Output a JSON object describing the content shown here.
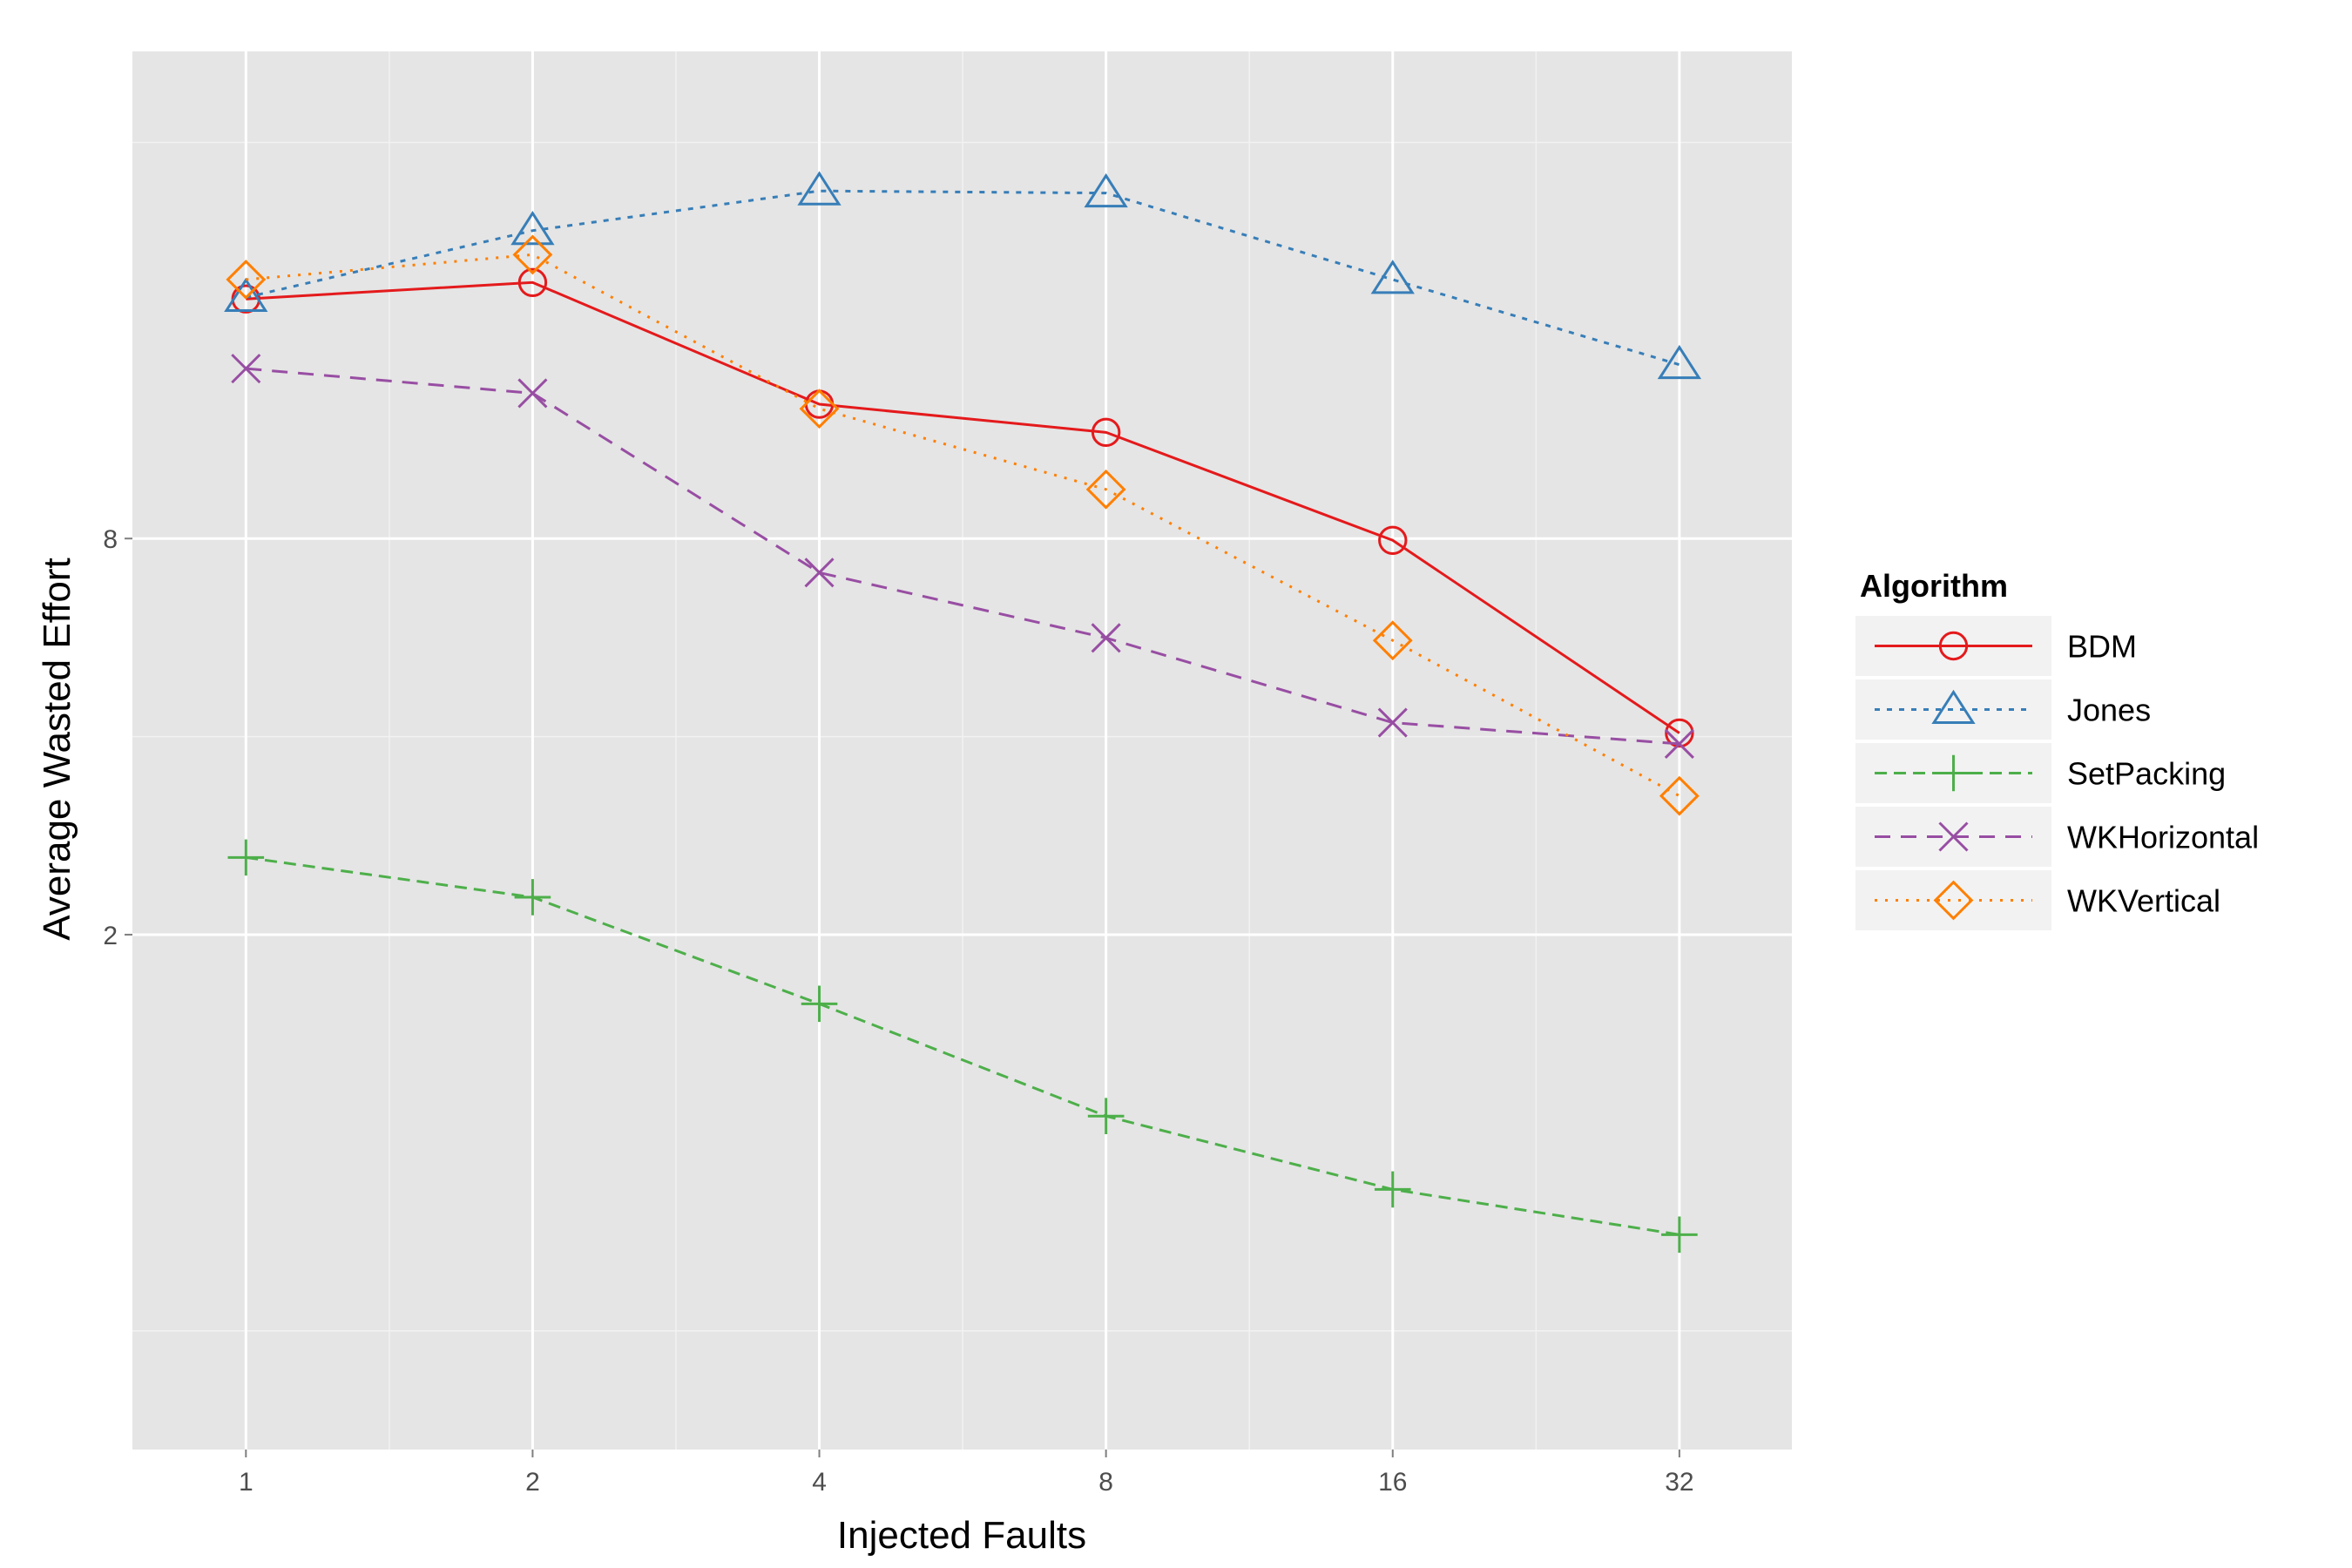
{
  "chart_data": {
    "type": "line",
    "title": "",
    "xlabel": "Injected Faults",
    "ylabel": "Average Wasted Effort",
    "x": [
      1,
      2,
      4,
      8,
      16,
      32
    ],
    "x_scale": "log2",
    "y_scale": "log2",
    "ylim": [
      0.33,
      44
    ],
    "xlim": [
      0.76,
      42
    ],
    "x_ticks": [
      1,
      2,
      4,
      8,
      16,
      32
    ],
    "x_tick_labels": [
      "1",
      "2",
      "4",
      "8",
      "16",
      "32"
    ],
    "y_ticks": [
      2,
      8
    ],
    "y_tick_labels": [
      "2",
      "8"
    ],
    "grid": true,
    "legend": {
      "title": "Algorithm",
      "position": "right"
    },
    "series": [
      {
        "name": "BDM",
        "values": [
          18.5,
          19.6,
          12.8,
          11.6,
          7.95,
          4.05
        ],
        "color": "#e41a1c",
        "marker": "circle",
        "dash": "solid"
      },
      {
        "name": "Jones",
        "values": [
          18.6,
          23.5,
          27.0,
          26.8,
          19.8,
          14.7
        ],
        "color": "#377eb8",
        "marker": "triangle",
        "dash": "short-dash"
      },
      {
        "name": "SetPacking",
        "values": [
          2.62,
          2.28,
          1.57,
          1.06,
          0.82,
          0.7
        ],
        "color": "#4daf4a",
        "marker": "plus",
        "dash": "dashed"
      },
      {
        "name": "WKHorizontal",
        "values": [
          14.5,
          13.3,
          7.1,
          5.65,
          4.2,
          3.9
        ],
        "color": "#984ea3",
        "marker": "x",
        "dash": "long-dash"
      },
      {
        "name": "WKVertical",
        "values": [
          19.8,
          21.6,
          12.6,
          9.5,
          5.6,
          3.25
        ],
        "color": "#ff7f00",
        "marker": "diamond",
        "dash": "dotted"
      }
    ]
  }
}
